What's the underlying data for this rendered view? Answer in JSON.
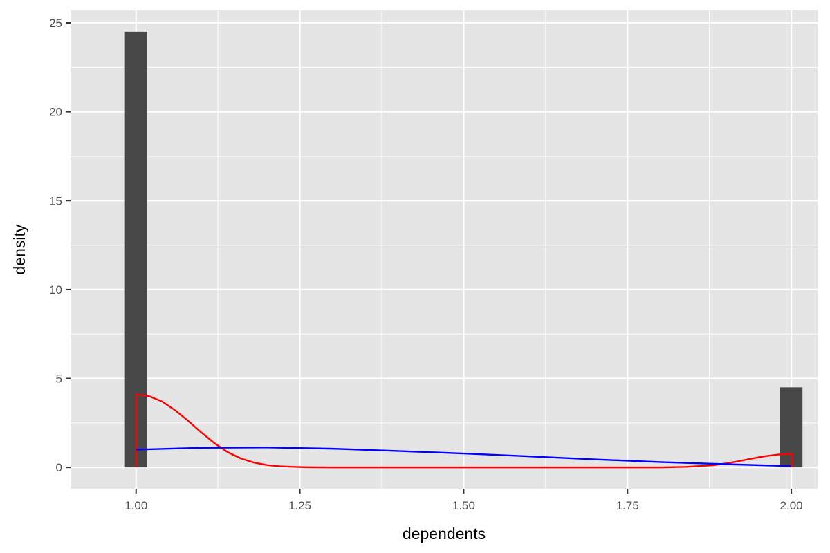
{
  "chart_data": {
    "type": "bar",
    "title": "",
    "xlabel": "dependents",
    "ylabel": "density",
    "xlim": [
      0.9,
      2.04
    ],
    "ylim": [
      -1.2,
      25.7
    ],
    "grid": true,
    "x_ticks": [
      1.0,
      1.25,
      1.5,
      1.75,
      2.0
    ],
    "x_tick_labels": [
      "1.00",
      "1.25",
      "1.50",
      "1.75",
      "2.00"
    ],
    "x_minor_ticks": [
      1.125,
      1.375,
      1.625,
      1.875
    ],
    "y_ticks": [
      0,
      5,
      10,
      15,
      20,
      25
    ],
    "y_tick_labels": [
      "0",
      "5",
      "10",
      "15",
      "20",
      "25"
    ],
    "histogram": {
      "bins": [
        {
          "x0": 0.983,
          "x1": 1.017,
          "density": 24.5
        },
        {
          "x0": 1.983,
          "x1": 2.017,
          "density": 4.5
        }
      ],
      "color": "#474747"
    },
    "series": [
      {
        "type": "area-outline",
        "color": "#ff0000",
        "x": [
          1.0,
          1.0,
          1.02,
          1.04,
          1.06,
          1.08,
          1.1,
          1.12,
          1.14,
          1.16,
          1.18,
          1.2,
          1.22,
          1.24,
          1.26,
          1.3,
          1.4,
          1.5,
          1.6,
          1.7,
          1.8,
          1.84,
          1.88,
          1.9,
          1.92,
          1.94,
          1.96,
          1.98,
          2.0,
          2.0
        ],
        "values": [
          0,
          4.1,
          4.0,
          3.7,
          3.2,
          2.6,
          1.95,
          1.35,
          0.85,
          0.5,
          0.27,
          0.13,
          0.06,
          0.03,
          0.01,
          0.0,
          0.0,
          0.0,
          0.0,
          0.0,
          0.0,
          0.03,
          0.12,
          0.22,
          0.35,
          0.5,
          0.63,
          0.72,
          0.76,
          0
        ]
      },
      {
        "type": "line",
        "color": "#0000ff",
        "x": [
          1.0,
          1.1,
          1.2,
          1.3,
          1.4,
          1.5,
          1.6,
          1.7,
          1.8,
          1.9,
          2.0
        ],
        "values": [
          1.0,
          1.1,
          1.12,
          1.05,
          0.92,
          0.78,
          0.62,
          0.45,
          0.3,
          0.18,
          0.07
        ]
      }
    ]
  },
  "colors": {
    "panel_background": "#e5e5e5",
    "grid_line": "#ffffff",
    "bar": "#474747",
    "red_curve": "#ff0000",
    "blue_curve": "#0000ff"
  }
}
